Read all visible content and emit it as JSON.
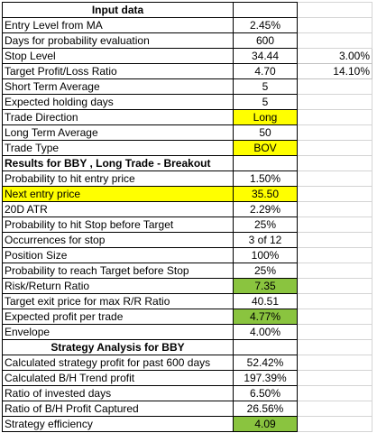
{
  "colors": {
    "yellow_highlight": "#ffff00",
    "green_highlight": "#8ac43f",
    "border": "#000000"
  },
  "rows": [
    {
      "label": "Input data",
      "value": "",
      "extra": "",
      "style": "section",
      "label_hl": "",
      "value_hl": ""
    },
    {
      "label": "Entry Level from MA",
      "value": "2.45%",
      "extra": "",
      "style": "",
      "label_hl": "",
      "value_hl": ""
    },
    {
      "label": "Days for probability evaluation",
      "value": "600",
      "extra": "",
      "style": "",
      "label_hl": "",
      "value_hl": ""
    },
    {
      "label": "Stop Level",
      "value": "34.44",
      "extra": "3.00%",
      "style": "",
      "label_hl": "",
      "value_hl": ""
    },
    {
      "label": "Target Profit/Loss Ratio",
      "value": "4.70",
      "extra": "14.10%",
      "style": "",
      "label_hl": "",
      "value_hl": ""
    },
    {
      "label": "Short Term Average",
      "value": "5",
      "extra": "",
      "style": "",
      "label_hl": "",
      "value_hl": ""
    },
    {
      "label": "Expected holding days",
      "value": "5",
      "extra": "",
      "style": "",
      "label_hl": "",
      "value_hl": ""
    },
    {
      "label": "Trade Direction",
      "value": "Long",
      "extra": "",
      "style": "",
      "label_hl": "",
      "value_hl": "yellow"
    },
    {
      "label": "Long Term Average",
      "value": "50",
      "extra": "",
      "style": "",
      "label_hl": "",
      "value_hl": ""
    },
    {
      "label": "Trade Type",
      "value": "BOV",
      "extra": "",
      "style": "",
      "label_hl": "",
      "value_hl": "yellow"
    },
    {
      "label": "Results for BBY , Long Trade - Breakout",
      "value": "",
      "extra": "",
      "style": "subhead",
      "label_hl": "",
      "value_hl": ""
    },
    {
      "label": "Probability to hit entry price",
      "value": "1.50%",
      "extra": "",
      "style": "",
      "label_hl": "",
      "value_hl": ""
    },
    {
      "label": "Next entry price",
      "value": "35.50",
      "extra": "",
      "style": "",
      "label_hl": "yellow",
      "value_hl": "yellow"
    },
    {
      "label": "20D ATR",
      "value": "2.29%",
      "extra": "",
      "style": "",
      "label_hl": "",
      "value_hl": ""
    },
    {
      "label": "Probability to hit Stop before Target",
      "value": "25%",
      "extra": "",
      "style": "",
      "label_hl": "",
      "value_hl": ""
    },
    {
      "label": "Occurrences for stop",
      "value": "3 of 12",
      "extra": "",
      "style": "",
      "label_hl": "",
      "value_hl": ""
    },
    {
      "label": "Position Size",
      "value": "100%",
      "extra": "",
      "style": "",
      "label_hl": "",
      "value_hl": ""
    },
    {
      "label": "Probability to reach Target before Stop",
      "value": "25%",
      "extra": "",
      "style": "",
      "label_hl": "",
      "value_hl": ""
    },
    {
      "label": "Risk/Return Ratio",
      "value": "7.35",
      "extra": "",
      "style": "",
      "label_hl": "",
      "value_hl": "green"
    },
    {
      "label": "Target exit price for max R/R Ratio",
      "value": "40.51",
      "extra": "",
      "style": "",
      "label_hl": "",
      "value_hl": ""
    },
    {
      "label": "Expected profit per trade",
      "value": "4.77%",
      "extra": "",
      "style": "",
      "label_hl": "",
      "value_hl": "green"
    },
    {
      "label": "Envelope",
      "value": "4.00%",
      "extra": "",
      "style": "",
      "label_hl": "",
      "value_hl": ""
    },
    {
      "label": "Strategy Analysis for BBY",
      "value": "",
      "extra": "",
      "style": "section",
      "label_hl": "",
      "value_hl": ""
    },
    {
      "label": "Calculated strategy profit for past 600 days",
      "value": "52.42%",
      "extra": "",
      "style": "",
      "label_hl": "",
      "value_hl": ""
    },
    {
      "label": "Calculated B/H Trend profit",
      "value": "197.39%",
      "extra": "",
      "style": "",
      "label_hl": "",
      "value_hl": ""
    },
    {
      "label": "Ratio of invested days",
      "value": "6.50%",
      "extra": "",
      "style": "",
      "label_hl": "",
      "value_hl": ""
    },
    {
      "label": "Ratio of B/H Profit Captured",
      "value": "26.56%",
      "extra": "",
      "style": "",
      "label_hl": "",
      "value_hl": ""
    },
    {
      "label": "Strategy efficiency",
      "value": "4.09",
      "extra": "",
      "style": "",
      "label_hl": "",
      "value_hl": "green"
    }
  ]
}
